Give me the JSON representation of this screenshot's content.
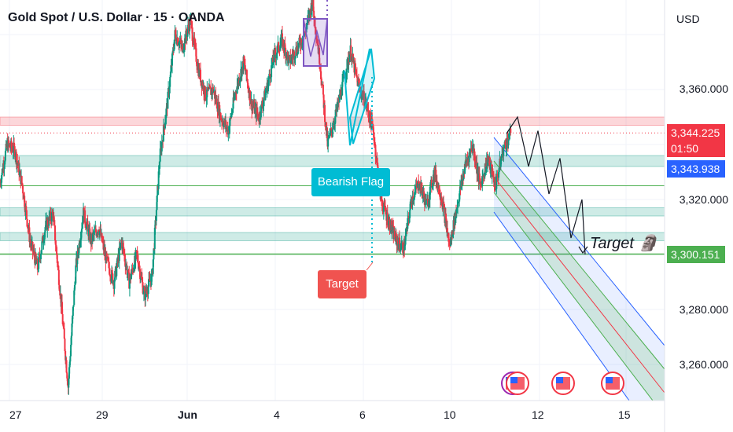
{
  "header": {
    "title": "Gold Spot / U.S. Dollar · 15 · OANDA",
    "currency": "USD"
  },
  "price_axis": {
    "ticks": [
      "3,360.000",
      "3,320.000",
      "3,280.000",
      "3,260.000"
    ],
    "current_price": "3,344.225",
    "countdown": "01:50",
    "bid_price": "3,343.938",
    "target_price": "3,300.151"
  },
  "time_axis": {
    "ticks": [
      "27",
      "29",
      "Jun",
      "4",
      "6",
      "10",
      "12",
      "15"
    ]
  },
  "annotations": {
    "bearish_flag": "Bearish Flag",
    "target_callout": "Target",
    "target_arrow_text": "Target 🗿"
  },
  "colors": {
    "up": "#089981",
    "down": "#f23645",
    "bid": "#2962ff",
    "callout_cyan": "#00bcd4",
    "callout_red": "#f05350",
    "target_green": "#4caf50"
  },
  "chart_data": {
    "type": "candlestick",
    "instrument": "Gold Spot / U.S. Dollar",
    "interval": "15",
    "source": "OANDA",
    "ylim": [
      3245,
      3390
    ],
    "x_ticks": [
      "27",
      "29",
      "Jun",
      "4",
      "6",
      "10",
      "12",
      "15"
    ],
    "y_ticks": [
      3360,
      3320,
      3280,
      3260
    ],
    "price_path": [
      [
        "27",
        3325
      ],
      [
        "27",
        3340
      ],
      [
        "27",
        3338
      ],
      [
        "27",
        3325
      ],
      [
        "27",
        3305
      ],
      [
        "29",
        3295
      ],
      [
        "29",
        3310
      ],
      [
        "29",
        3315
      ],
      [
        "29",
        3285
      ],
      [
        "29",
        3252
      ],
      [
        "29",
        3295
      ],
      [
        "29",
        3315
      ],
      [
        "29",
        3305
      ],
      [
        "29",
        3310
      ],
      [
        "29",
        3298
      ],
      [
        "29",
        3290
      ],
      [
        "29",
        3305
      ],
      [
        "29",
        3290
      ],
      [
        "29",
        3300
      ],
      [
        "29",
        3285
      ],
      [
        "29",
        3292
      ],
      [
        "Jun",
        3335
      ],
      [
        "Jun",
        3355
      ],
      [
        "Jun",
        3380
      ],
      [
        "Jun",
        3375
      ],
      [
        "Jun",
        3385
      ],
      [
        "Jun",
        3368
      ],
      [
        "Jun",
        3358
      ],
      [
        "Jun",
        3360
      ],
      [
        "Jun",
        3350
      ],
      [
        "Jun",
        3345
      ],
      [
        "4",
        3360
      ],
      [
        "4",
        3370
      ],
      [
        "4",
        3355
      ],
      [
        "4",
        3350
      ],
      [
        "4",
        3360
      ],
      [
        "4",
        3372
      ],
      [
        "4",
        3378
      ],
      [
        "4",
        3370
      ],
      [
        "4",
        3375
      ],
      [
        "4",
        3380
      ],
      [
        "6",
        3392
      ],
      [
        "6",
        3370
      ],
      [
        "6",
        3340
      ],
      [
        "6",
        3350
      ],
      [
        "6",
        3362
      ],
      [
        "6",
        3374
      ],
      [
        "6",
        3362
      ],
      [
        "6",
        3355
      ],
      [
        "6",
        3345
      ],
      [
        "6",
        3320
      ],
      [
        "6",
        3312
      ],
      [
        "6",
        3305
      ],
      [
        "10",
        3302
      ],
      [
        "10",
        3320
      ],
      [
        "10",
        3326
      ],
      [
        "10",
        3318
      ],
      [
        "10",
        3330
      ],
      [
        "10",
        3320
      ],
      [
        "10",
        3303
      ],
      [
        "10",
        3318
      ],
      [
        "10",
        3332
      ],
      [
        "10",
        3340
      ],
      [
        "10",
        3325
      ],
      [
        "10",
        3335
      ],
      [
        "10",
        3325
      ],
      [
        "10",
        3338
      ],
      [
        "10",
        3344.225
      ]
    ],
    "levels": {
      "resistance_zone": [
        3347,
        3350
      ],
      "support_zones": [
        [
          3332,
          3336
        ],
        [
          3314,
          3317
        ],
        [
          3305,
          3308
        ]
      ],
      "support_line": 3325,
      "target_line": 3300.151,
      "current_price": 3344.225,
      "bid_price": 3343.938
    },
    "pattern": {
      "name": "Bearish Flag",
      "channel": "descending parallel channel",
      "projected_path": [
        3344,
        3350,
        3332,
        3345,
        3322,
        3335,
        3306,
        3320,
        3300
      ]
    }
  }
}
